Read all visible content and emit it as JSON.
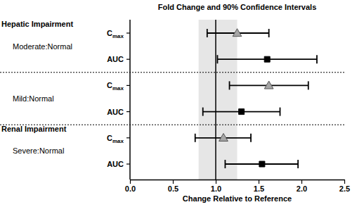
{
  "chart_data": {
    "type": "forest",
    "title": "Fold Change and 90% Confidence Intervals",
    "x_label": "Change Relative to Reference",
    "xlim": [
      0,
      2.5
    ],
    "xticks": [
      {
        "value": 0,
        "label": "0.0"
      },
      {
        "value": 0.5,
        "label": "0.5"
      },
      {
        "value": 1,
        "label": "1.0"
      },
      {
        "value": 1.5,
        "label": "1.5"
      },
      {
        "value": 2,
        "label": "2.0"
      },
      {
        "value": 2.5,
        "label": "2.5"
      }
    ],
    "reference": 1,
    "band": [
      0.8,
      1.25
    ],
    "groups": [
      {
        "name": "Hepatic Impairment",
        "subgroups": [
          {
            "name": "Moderate:Normal",
            "rows": [
              {
                "label": "Cmax",
                "value": 1.25,
                "lower": 0.9,
                "upper": 1.62,
                "marker": "triangle",
                "color": "#a6a6a6"
              },
              {
                "label": "AUC",
                "value": 1.6,
                "lower": 1.02,
                "upper": 2.18,
                "marker": "square",
                "color": "#000000"
              }
            ]
          },
          {
            "name": "Mild:Normal",
            "rows": [
              {
                "label": "Cmax",
                "value": 1.62,
                "lower": 1.16,
                "upper": 2.08,
                "marker": "triangle",
                "color": "#a6a6a6"
              },
              {
                "label": "AUC",
                "value": 1.3,
                "lower": 0.85,
                "upper": 1.75,
                "marker": "square",
                "color": "#000000"
              }
            ]
          }
        ]
      },
      {
        "name": "Renal Impairment",
        "subgroups": [
          {
            "name": "Severe:Normal",
            "rows": [
              {
                "label": "Cmax",
                "value": 1.09,
                "lower": 0.76,
                "upper": 1.41,
                "marker": "triangle",
                "color": "#a6a6a6"
              },
              {
                "label": "AUC",
                "value": 1.54,
                "lower": 1.11,
                "upper": 1.96,
                "marker": "square",
                "color": "#000000"
              }
            ]
          }
        ]
      }
    ]
  }
}
